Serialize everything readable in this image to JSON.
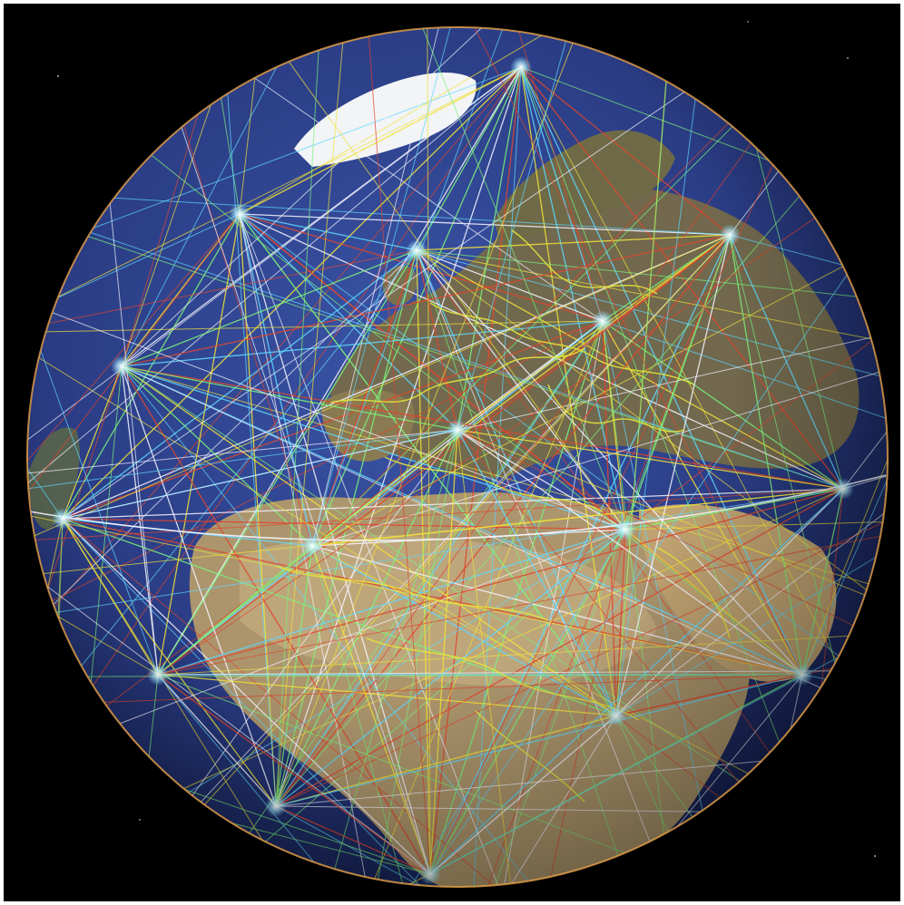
{
  "image": {
    "subject": "globe-grid",
    "colors": {
      "background": "#000000",
      "ocean": "#2c3f86",
      "ocean_deep": "#1b2a66",
      "land_desert": "#b8a070",
      "land_green": "#6f7a4c",
      "land_europe": "#7d6e4c",
      "ice": "#f4f6f8",
      "border_lines": "#e6e63a",
      "grid_white": "#f5f5ff",
      "grid_yellow": "#f2e23a",
      "grid_green": "#7cf27a",
      "grid_cyan": "#5fd8ff",
      "grid_red": "#e0462e",
      "node_glow": "#ffffff"
    }
  }
}
